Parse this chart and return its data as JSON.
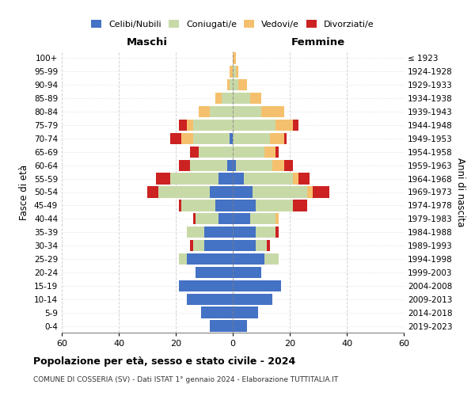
{
  "age_groups_bottom_to_top": [
    "0-4",
    "5-9",
    "10-14",
    "15-19",
    "20-24",
    "25-29",
    "30-34",
    "35-39",
    "40-44",
    "45-49",
    "50-54",
    "55-59",
    "60-64",
    "65-69",
    "70-74",
    "75-79",
    "80-84",
    "85-89",
    "90-94",
    "95-99",
    "100+"
  ],
  "birth_years_bottom_to_top": [
    "2019-2023",
    "2014-2018",
    "2009-2013",
    "2004-2008",
    "1999-2003",
    "1994-1998",
    "1989-1993",
    "1984-1988",
    "1979-1983",
    "1974-1978",
    "1969-1973",
    "1964-1968",
    "1959-1963",
    "1954-1958",
    "1949-1953",
    "1944-1948",
    "1939-1943",
    "1934-1938",
    "1929-1933",
    "1924-1928",
    "≤ 1923"
  ],
  "male_celibi": [
    8,
    11,
    16,
    19,
    13,
    16,
    10,
    10,
    5,
    6,
    8,
    5,
    2,
    0,
    1,
    0,
    0,
    0,
    0,
    0,
    0
  ],
  "male_coniugati": [
    0,
    0,
    0,
    0,
    0,
    3,
    4,
    6,
    8,
    12,
    18,
    17,
    13,
    12,
    13,
    14,
    8,
    4,
    1,
    0,
    0
  ],
  "male_vedovi": [
    0,
    0,
    0,
    0,
    0,
    0,
    0,
    0,
    0,
    0,
    0,
    0,
    0,
    0,
    4,
    2,
    4,
    2,
    1,
    1,
    0
  ],
  "male_divorziati": [
    0,
    0,
    0,
    0,
    0,
    0,
    1,
    0,
    1,
    1,
    4,
    5,
    4,
    3,
    4,
    3,
    0,
    0,
    0,
    0,
    0
  ],
  "female_celibi": [
    5,
    9,
    14,
    17,
    10,
    11,
    8,
    8,
    6,
    8,
    7,
    4,
    1,
    0,
    0,
    0,
    0,
    0,
    0,
    0,
    0
  ],
  "female_coniugati": [
    0,
    0,
    0,
    0,
    0,
    5,
    4,
    7,
    9,
    13,
    19,
    17,
    13,
    11,
    13,
    15,
    10,
    6,
    2,
    1,
    0
  ],
  "female_vedovi": [
    0,
    0,
    0,
    0,
    0,
    0,
    0,
    0,
    1,
    0,
    2,
    2,
    4,
    4,
    5,
    6,
    8,
    4,
    3,
    1,
    1
  ],
  "female_divorziati": [
    0,
    0,
    0,
    0,
    0,
    0,
    1,
    1,
    0,
    5,
    6,
    4,
    3,
    1,
    1,
    2,
    0,
    0,
    0,
    0,
    0
  ],
  "colors": {
    "celibi": "#4472c4",
    "coniugati": "#c8d9a8",
    "vedovi": "#f5c06e",
    "divorziati": "#cc2222"
  },
  "xlim": 60,
  "title": "Popolazione per età, sesso e stato civile - 2024",
  "subtitle": "COMUNE DI COSSERIA (SV) - Dati ISTAT 1° gennaio 2024 - Elaborazione TUTTITALIA.IT",
  "ylabel_left": "Fasce di età",
  "ylabel_right": "Anni di nascita",
  "xlabel_left": "Maschi",
  "xlabel_right": "Femmine"
}
